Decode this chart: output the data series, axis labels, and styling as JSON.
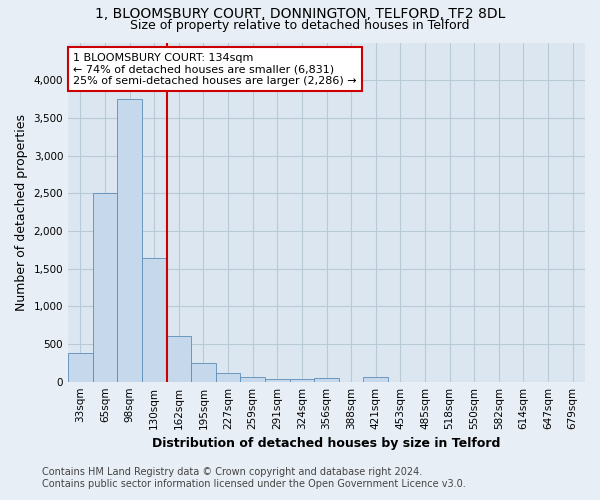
{
  "title": "1, BLOOMSBURY COURT, DONNINGTON, TELFORD, TF2 8DL",
  "subtitle": "Size of property relative to detached houses in Telford",
  "xlabel": "Distribution of detached houses by size in Telford",
  "ylabel": "Number of detached properties",
  "categories": [
    "33sqm",
    "65sqm",
    "98sqm",
    "130sqm",
    "162sqm",
    "195sqm",
    "227sqm",
    "259sqm",
    "291sqm",
    "324sqm",
    "356sqm",
    "388sqm",
    "421sqm",
    "453sqm",
    "485sqm",
    "518sqm",
    "550sqm",
    "582sqm",
    "614sqm",
    "647sqm",
    "679sqm"
  ],
  "values": [
    380,
    2500,
    3750,
    1640,
    600,
    250,
    110,
    60,
    40,
    30,
    50,
    0,
    60,
    0,
    0,
    0,
    0,
    0,
    0,
    0,
    0
  ],
  "bar_color": "#c6d9ec",
  "bar_edge_color": "#5b8db8",
  "vline_color": "#cc0000",
  "vline_x_index": 3,
  "annotation_text_line1": "1 BLOOMSBURY COURT: 134sqm",
  "annotation_text_line2": "← 74% of detached houses are smaller (6,831)",
  "annotation_text_line3": "25% of semi-detached houses are larger (2,286) →",
  "ylim": [
    0,
    4500
  ],
  "yticks": [
    0,
    500,
    1000,
    1500,
    2000,
    2500,
    3000,
    3500,
    4000
  ],
  "footer_line1": "Contains HM Land Registry data © Crown copyright and database right 2024.",
  "footer_line2": "Contains public sector information licensed under the Open Government Licence v3.0.",
  "bg_color": "#e8eef5",
  "plot_bg_color": "#dce6f0",
  "grid_color": "#b8cad8",
  "title_fontsize": 10,
  "subtitle_fontsize": 9,
  "axis_label_fontsize": 9,
  "tick_fontsize": 7.5,
  "annotation_fontsize": 8,
  "footer_fontsize": 7
}
